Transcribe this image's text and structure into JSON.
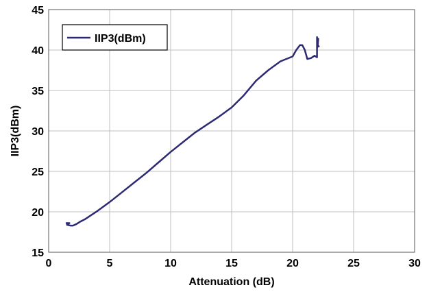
{
  "chart_data": {
    "type": "line",
    "title": "",
    "xlabel": "Attenuation (dB)",
    "ylabel": "IIP3(dBm)",
    "xlim": [
      0,
      30
    ],
    "ylim": [
      15,
      45
    ],
    "xticks": [
      "0",
      "5",
      "10",
      "15",
      "20",
      "25",
      "30"
    ],
    "yticks": [
      "15",
      "20",
      "25",
      "30",
      "35",
      "40",
      "45"
    ],
    "grid": true,
    "legend": {
      "placement": "top-left"
    },
    "series": [
      {
        "name": "IIP3(dBm)",
        "color": "#2b2a73",
        "x": [
          1.4,
          1.7,
          1.5,
          1.8,
          2.0,
          2.3,
          2.6,
          3.0,
          3.5,
          4.0,
          5.0,
          6.0,
          7.0,
          8.0,
          9.0,
          10.0,
          11.0,
          12.0,
          13.0,
          14.0,
          15.0,
          16.0,
          17.0,
          18.0,
          19.0,
          20.0,
          20.3,
          20.6,
          20.8,
          21.0,
          21.2,
          21.5,
          21.8,
          22.0,
          22.0,
          22.0,
          22.1,
          22.05,
          22.2
        ],
        "values": [
          18.6,
          18.6,
          18.4,
          18.3,
          18.3,
          18.5,
          18.8,
          19.1,
          19.6,
          20.1,
          21.2,
          22.4,
          23.6,
          24.8,
          26.1,
          27.4,
          28.6,
          29.8,
          30.8,
          31.8,
          32.9,
          34.4,
          36.2,
          37.5,
          38.6,
          39.2,
          40.0,
          40.6,
          40.6,
          40.0,
          38.9,
          39.0,
          39.3,
          39.1,
          41.6,
          40.9,
          41.4,
          40.4,
          40.5
        ]
      }
    ]
  }
}
